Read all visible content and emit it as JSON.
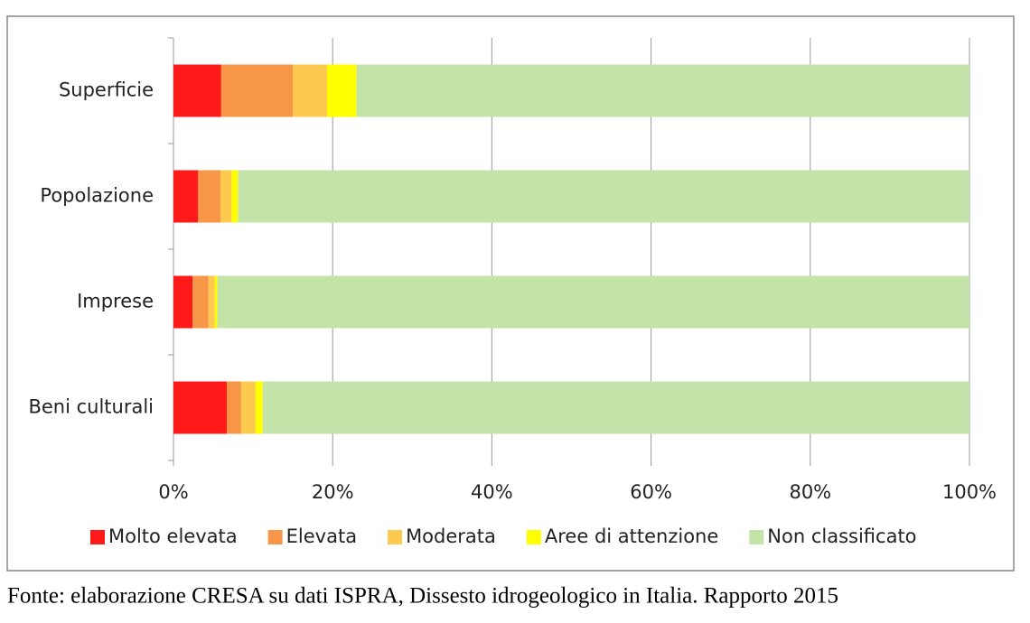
{
  "chart_data": {
    "type": "stacked-barh",
    "categories": [
      "Superficie",
      "Popolazione",
      "Imprese",
      "Beni culturali"
    ],
    "series": [
      {
        "name": "Molto elevata",
        "color": "#ff1a1a",
        "values": [
          6.0,
          3.1,
          2.4,
          6.7
        ]
      },
      {
        "name": "Elevata",
        "color": "#f79646",
        "values": [
          9.0,
          2.8,
          2.0,
          1.8
        ]
      },
      {
        "name": "Moderata",
        "color": "#fdc94f",
        "values": [
          4.3,
          1.4,
          0.8,
          1.8
        ]
      },
      {
        "name": "Aree di attenzione",
        "color": "#ffff00",
        "values": [
          3.7,
          0.8,
          0.3,
          0.9
        ]
      },
      {
        "name": "Non classificato",
        "color": "#c4e3a8",
        "values": [
          77.0,
          91.9,
          94.5,
          88.8
        ]
      }
    ],
    "xlim": [
      0,
      100
    ],
    "xticks": [
      {
        "value": 0,
        "label": "0%"
      },
      {
        "value": 20,
        "label": "20%"
      },
      {
        "value": 40,
        "label": "40%"
      },
      {
        "value": 60,
        "label": "60%"
      },
      {
        "value": 80,
        "label": "80%"
      },
      {
        "value": 100,
        "label": "100%"
      }
    ],
    "grid": true,
    "legend": "bottom",
    "caption": "Fonte: elaborazione CRESA su dati ISPRA, Dissesto idrogeologico in Italia. Rapporto 2015"
  }
}
